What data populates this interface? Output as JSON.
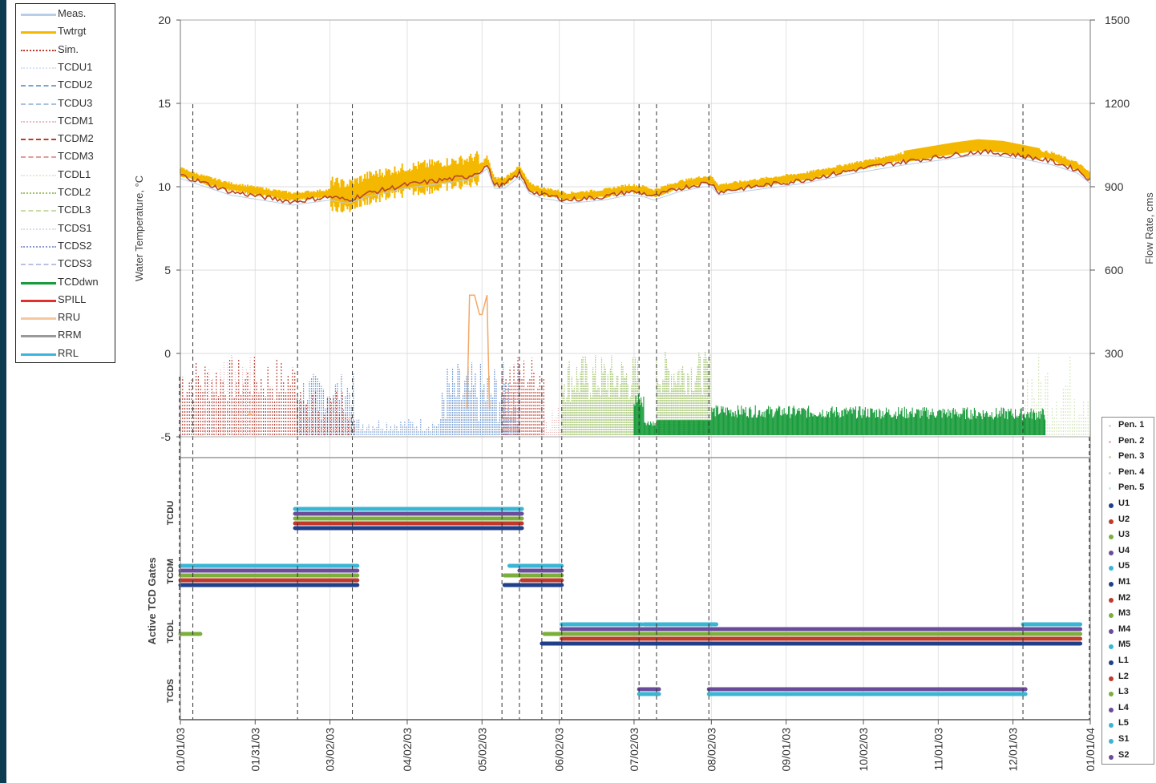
{
  "chart_data": [
    {
      "type": "line",
      "ylabel_left": "Water Temperature, °C",
      "ylabel_right": "Flow Rate, cms",
      "yticks_left": [
        "20",
        "15",
        "10",
        "5",
        "0",
        "-5"
      ],
      "ylim_left": [
        -5,
        20
      ],
      "yticks_right": [
        "1500",
        "1200",
        "900",
        "600",
        "300"
      ],
      "ylim_right": [
        0,
        1500
      ],
      "x_range": [
        "01/01/03",
        "01/01/04"
      ],
      "x_tick_labels": [
        "01/01/03",
        "01/31/03",
        "03/02/03",
        "04/02/03",
        "05/02/03",
        "06/02/03",
        "07/02/03",
        "08/02/03",
        "09/01/03",
        "10/02/03",
        "11/01/03",
        "12/01/03",
        "01/01/04"
      ],
      "x_tick_days": [
        0,
        30,
        60,
        91,
        121,
        152,
        182,
        213,
        243,
        274,
        304,
        334,
        365
      ],
      "grid": true,
      "legend_position": "left",
      "legend": [
        {
          "name": "Meas.",
          "color": "#b8cde8",
          "style": "solid"
        },
        {
          "name": "Twtrgt",
          "color": "#f5b800",
          "style": "solid"
        },
        {
          "name": "Sim.",
          "color": "#c0392b",
          "style": "dotted"
        },
        {
          "name": "TCDU1",
          "color": "#d6e4f2",
          "style": "dotted"
        },
        {
          "name": "TCDU2",
          "color": "#7ea3d4",
          "style": "dashed"
        },
        {
          "name": "TCDU3",
          "color": "#a9c2e2",
          "style": "dashed"
        },
        {
          "name": "TCDM1",
          "color": "#f0b8b8",
          "style": "dotted"
        },
        {
          "name": "TCDM2",
          "color": "#c0392b",
          "style": "dashed"
        },
        {
          "name": "TCDM3",
          "color": "#e79a9a",
          "style": "dashed"
        },
        {
          "name": "TCDL1",
          "color": "#dfeccc",
          "style": "dotted"
        },
        {
          "name": "TCDL2",
          "color": "#9fc26a",
          "style": "dotted"
        },
        {
          "name": "TCDL3",
          "color": "#c8dca7",
          "style": "dashed"
        },
        {
          "name": "TCDS1",
          "color": "#d9dff0",
          "style": "dotted"
        },
        {
          "name": "TCDS2",
          "color": "#8e9bd6",
          "style": "dotted"
        },
        {
          "name": "TCDS3",
          "color": "#b9c2e6",
          "style": "dashed"
        },
        {
          "name": "TCDdwn",
          "color": "#1a9c3c",
          "style": "solid"
        },
        {
          "name": "SPILL",
          "color": "#e03030",
          "style": "solid"
        },
        {
          "name": "RRU",
          "color": "#f6c79c",
          "style": "solid"
        },
        {
          "name": "RRM",
          "color": "#999999",
          "style": "solid"
        },
        {
          "name": "RRL",
          "color": "#3ab5e0",
          "style": "solid"
        }
      ],
      "series": [
        {
          "name": "Twtrgt",
          "x": [
            0,
            10,
            20,
            45,
            60,
            67,
            75,
            90,
            105,
            115,
            121,
            123,
            126,
            130,
            136,
            140,
            145,
            150,
            155,
            170,
            180,
            186,
            190,
            200,
            210,
            213,
            216,
            230,
            250,
            270,
            290,
            310,
            320,
            330,
            340,
            350,
            360,
            365
          ],
          "y": [
            10.9,
            10.4,
            10.0,
            9.4,
            9.6,
            9.4,
            9.9,
            10.4,
            10.7,
            10.9,
            11.2,
            11.6,
            10.3,
            10.3,
            11.0,
            10.0,
            9.7,
            9.6,
            9.4,
            9.6,
            9.9,
            9.8,
            9.6,
            10.1,
            10.4,
            10.4,
            9.9,
            10.2,
            10.6,
            11.2,
            11.8,
            12.3,
            12.5,
            12.4,
            12.1,
            11.8,
            11.2,
            10.6
          ]
        },
        {
          "name": "Sim.",
          "x": [
            0,
            10,
            20,
            45,
            60,
            67,
            75,
            90,
            105,
            115,
            121,
            123,
            126,
            130,
            136,
            140,
            145,
            150,
            155,
            170,
            180,
            186,
            190,
            200,
            210,
            213,
            216,
            230,
            250,
            270,
            290,
            310,
            320,
            330,
            340,
            350,
            360,
            365
          ],
          "y": [
            10.7,
            10.2,
            9.7,
            9.1,
            9.4,
            9.2,
            9.6,
            10.1,
            10.4,
            10.6,
            11.0,
            11.3,
            10.1,
            10.1,
            10.8,
            9.8,
            9.5,
            9.4,
            9.2,
            9.4,
            9.7,
            9.6,
            9.4,
            9.9,
            10.2,
            10.2,
            9.7,
            10.0,
            10.4,
            11.0,
            11.5,
            11.9,
            12.1,
            12.0,
            11.8,
            11.5,
            11.0,
            10.4
          ]
        },
        {
          "name": "TCDdwn",
          "x": [
            182,
            190,
            199,
            213,
            230,
            260,
            290,
            320,
            340,
            347
          ],
          "y": [
            225,
            195,
            215,
            190,
            175,
            160,
            165,
            165,
            160,
            155
          ]
        },
        {
          "name": "RRU",
          "x": [
            115,
            116,
            118,
            120,
            121,
            123,
            124
          ],
          "y": [
            100,
            510,
            510,
            440,
            440,
            510,
            100
          ]
        }
      ]
    },
    {
      "type": "gantt",
      "ylabel": "Active TCD Gates",
      "row_labels": [
        "TCDU",
        "TCDM",
        "TCDL",
        "TCDS"
      ],
      "legend_position": "right",
      "legend": [
        {
          "name": "Pen. 1",
          "color": "#cbd7ee"
        },
        {
          "name": "Pen. 2",
          "color": "#e9b4b4"
        },
        {
          "name": "Pen. 3",
          "color": "#c7dca6"
        },
        {
          "name": "Pen. 4",
          "color": "#c9bfdd"
        },
        {
          "name": "Pen. 5",
          "color": "#c4e6f2"
        },
        {
          "name": "U1",
          "color": "#1f3f8a"
        },
        {
          "name": "U2",
          "color": "#c0392b"
        },
        {
          "name": "U3",
          "color": "#7cae3c"
        },
        {
          "name": "U4",
          "color": "#6b4c9a"
        },
        {
          "name": "U5",
          "color": "#3ab5d4"
        },
        {
          "name": "M1",
          "color": "#1f3f8a"
        },
        {
          "name": "M2",
          "color": "#c0392b"
        },
        {
          "name": "M3",
          "color": "#7cae3c"
        },
        {
          "name": "M4",
          "color": "#6b4c9a"
        },
        {
          "name": "M5",
          "color": "#3ab5d4"
        },
        {
          "name": "L1",
          "color": "#1f3f8a"
        },
        {
          "name": "L2",
          "color": "#c0392b"
        },
        {
          "name": "L3",
          "color": "#7cae3c"
        },
        {
          "name": "L4",
          "color": "#6b4c9a"
        },
        {
          "name": "L5",
          "color": "#3ab5d4"
        },
        {
          "name": "S1",
          "color": "#3ab5d4"
        },
        {
          "name": "S2",
          "color": "#6b4c9a"
        }
      ],
      "bars": [
        {
          "gate": "U5",
          "start": 46,
          "end": 137
        },
        {
          "gate": "U4",
          "start": 46,
          "end": 137
        },
        {
          "gate": "U3",
          "start": 46,
          "end": 137
        },
        {
          "gate": "U2",
          "start": 46,
          "end": 137
        },
        {
          "gate": "U1",
          "start": 46,
          "end": 137
        },
        {
          "gate": "M5",
          "start": 0,
          "end": 71
        },
        {
          "gate": "M4",
          "start": 0,
          "end": 71
        },
        {
          "gate": "M3",
          "start": 0,
          "end": 71
        },
        {
          "gate": "M2",
          "start": 0,
          "end": 71
        },
        {
          "gate": "M1",
          "start": 0,
          "end": 71
        },
        {
          "gate": "M5",
          "start": 132,
          "end": 153
        },
        {
          "gate": "M4",
          "start": 136,
          "end": 153
        },
        {
          "gate": "M3",
          "start": 130,
          "end": 153
        },
        {
          "gate": "M2",
          "start": 137,
          "end": 153
        },
        {
          "gate": "M1",
          "start": 130,
          "end": 153
        },
        {
          "gate": "L3",
          "start": 0,
          "end": 8
        },
        {
          "gate": "L5",
          "start": 153,
          "end": 185
        },
        {
          "gate": "L5",
          "start": 186,
          "end": 215
        },
        {
          "gate": "L5",
          "start": 338,
          "end": 361
        },
        {
          "gate": "L4",
          "start": 153,
          "end": 361
        },
        {
          "gate": "L3",
          "start": 146,
          "end": 361
        },
        {
          "gate": "L2",
          "start": 153,
          "end": 361
        },
        {
          "gate": "L1",
          "start": 145,
          "end": 361
        },
        {
          "gate": "S2",
          "start": 184,
          "end": 192
        },
        {
          "gate": "S1",
          "start": 184,
          "end": 192
        },
        {
          "gate": "S2",
          "start": 212,
          "end": 339
        },
        {
          "gate": "S1",
          "start": 212,
          "end": 339
        }
      ],
      "event_days": [
        5,
        47,
        69,
        129,
        136,
        145,
        153,
        184,
        191,
        212,
        338
      ]
    }
  ]
}
